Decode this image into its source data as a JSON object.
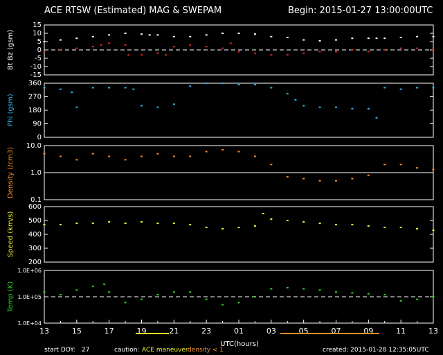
{
  "header": {
    "title": "ACE RTSW (Estimated) MAG & SWEPAM",
    "begin": "Begin: 2015-01-27 13:00:00UTC"
  },
  "footer": {
    "start_doy_label": "start DOY:",
    "start_doy": "27",
    "caution_label": "caution:",
    "caution_maneuver": "ACE maneuver",
    "caution_density": "density < 1",
    "created": "created: 2015-01-28 12:35:05UTC"
  },
  "colors": {
    "bt": "#ffffff",
    "bz": "#e02a1e",
    "phi": "#2fb8e6",
    "density": "#f0902a",
    "speed": "#f0f02a",
    "temp": "#2ed02e",
    "maneuver": "#f0f02a",
    "lowdensity": "#f0902a"
  },
  "chart_data": [
    {
      "type": "scatter",
      "ylabel": "Bt Bz (gsm)",
      "yticks": [
        "15",
        "10",
        "5",
        "0",
        "-5",
        "-10",
        "-15"
      ],
      "ylim": [
        -15,
        15
      ],
      "xlim": [
        0,
        24
      ],
      "series": [
        {
          "name": "Bt",
          "color": "#ffffff",
          "x": [
            0,
            1,
            2,
            3,
            4,
            5,
            6,
            6.5,
            7,
            8,
            9,
            10,
            11,
            12,
            13,
            14,
            15,
            16,
            17,
            18,
            19,
            20,
            20.5,
            21,
            22,
            23,
            24
          ],
          "values": [
            5,
            6,
            7,
            8,
            9,
            10,
            9.5,
            9,
            9,
            8,
            8,
            9,
            10,
            10,
            9.5,
            8,
            7.5,
            6,
            5.5,
            6,
            7,
            7,
            7,
            7,
            7.5,
            8,
            8
          ]
        },
        {
          "name": "Bz",
          "color": "#e02a1e",
          "x": [
            0,
            1,
            2,
            3,
            3.5,
            4,
            5,
            5.2,
            6,
            7,
            7.5,
            8,
            9,
            10,
            11,
            11.5,
            12,
            13,
            14,
            15,
            16,
            17,
            18,
            19,
            20,
            21,
            22,
            23,
            24
          ],
          "values": [
            -1,
            0,
            1,
            2,
            3,
            4,
            3,
            -3,
            -3,
            -2,
            -3,
            2,
            3,
            2,
            1,
            4,
            -1,
            -2,
            -3,
            -3,
            -2,
            -1,
            -1,
            0,
            -1,
            0,
            1,
            1,
            0
          ]
        }
      ],
      "dashed_zero": true
    },
    {
      "type": "scatter",
      "ylabel": "Phi (gsm)",
      "yticks": [
        "360",
        "270",
        "180",
        "90",
        "0"
      ],
      "ylim": [
        0,
        360
      ],
      "xlim": [
        0,
        24
      ],
      "series": [
        {
          "name": "Phi",
          "color": "#2fb8e6",
          "x": [
            0,
            1,
            1.7,
            2,
            3,
            4,
            5,
            5.5,
            6,
            7,
            8,
            9,
            10,
            11,
            12,
            13,
            14,
            15,
            15.5,
            16,
            17,
            18,
            19,
            20,
            20.5,
            21,
            22,
            23,
            24
          ],
          "values": [
            330,
            320,
            300,
            200,
            330,
            330,
            330,
            320,
            210,
            200,
            220,
            340,
            360,
            360,
            350,
            350,
            330,
            290,
            250,
            210,
            200,
            200,
            190,
            190,
            130,
            330,
            320,
            330,
            330
          ]
        }
      ]
    },
    {
      "type": "scatter",
      "ylabel": "Density (/cm3)",
      "yticks": [
        "10.0",
        "1.0",
        "0.1"
      ],
      "ylim": [
        0.1,
        10
      ],
      "yscale": "log",
      "xlim": [
        0,
        24
      ],
      "series": [
        {
          "name": "Density",
          "color": "#f0902a",
          "x": [
            0,
            1,
            2,
            3,
            4,
            5,
            6,
            7,
            8,
            9,
            10,
            11,
            12,
            13,
            14,
            15,
            16,
            17,
            18,
            19,
            20,
            21,
            22,
            23,
            24
          ],
          "values": [
            5,
            4,
            3,
            5,
            4,
            3,
            4,
            5,
            4,
            4,
            6,
            7,
            6,
            4,
            2,
            0.7,
            0.6,
            0.5,
            0.5,
            0.6,
            0.8,
            2,
            2,
            1.5,
            1.3
          ]
        }
      ],
      "hline": 1.0
    },
    {
      "type": "scatter",
      "ylabel": "Speed (km/s)",
      "yticks": [
        "600",
        "500",
        "400",
        "300",
        "200"
      ],
      "ylim": [
        200,
        600
      ],
      "xlim": [
        0,
        24
      ],
      "series": [
        {
          "name": "Speed",
          "color": "#f0f02a",
          "x": [
            0,
            1,
            2,
            3,
            4,
            5,
            6,
            7,
            8,
            9,
            10,
            11,
            12,
            13,
            13.5,
            14,
            15,
            16,
            17,
            18,
            19,
            20,
            21,
            22,
            23,
            24
          ],
          "values": [
            470,
            470,
            480,
            480,
            490,
            480,
            490,
            480,
            480,
            470,
            450,
            440,
            450,
            460,
            550,
            510,
            500,
            490,
            480,
            470,
            470,
            460,
            450,
            450,
            440,
            430
          ]
        }
      ]
    },
    {
      "type": "scatter",
      "ylabel": "Temp (K)",
      "yticks": [
        "1.0E+06",
        "1.0E+05",
        "1.0E+04"
      ],
      "ylim": [
        10000,
        1000000
      ],
      "yscale": "log",
      "xlim": [
        0,
        24
      ],
      "series": [
        {
          "name": "Temp",
          "color": "#2ed02e",
          "x": [
            0,
            1,
            2,
            3,
            3.7,
            4,
            5,
            6,
            7,
            8,
            9,
            10,
            11,
            12,
            13,
            14,
            15,
            16,
            17,
            18,
            19,
            20,
            21,
            22,
            23,
            24
          ],
          "values": [
            150000,
            120000,
            180000,
            250000,
            300000,
            150000,
            60000,
            80000,
            120000,
            150000,
            150000,
            80000,
            50000,
            60000,
            100000,
            200000,
            220000,
            200000,
            180000,
            150000,
            140000,
            130000,
            120000,
            70000,
            80000,
            100000
          ]
        }
      ],
      "dashed_line": 100000
    }
  ],
  "xaxis": {
    "ticks": [
      "13",
      "15",
      "17",
      "19",
      "21",
      "23",
      "01",
      "03",
      "05",
      "07",
      "09",
      "11",
      "13"
    ],
    "label": "UTC(hours)"
  }
}
